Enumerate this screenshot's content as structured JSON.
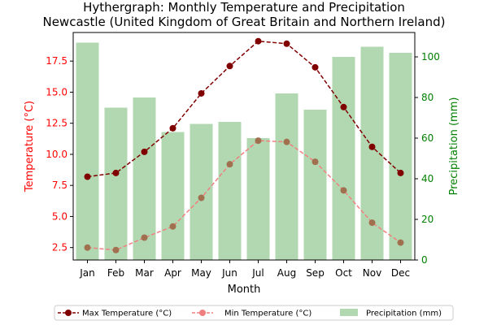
{
  "chart_data": {
    "type": "bar",
    "title": "Hythergraph: Monthly Temperature and Precipitation",
    "subtitle": "Newcastle (United Kingdom of Great Britain and Northern Ireland)",
    "xlabel": "Month",
    "ylabel": "Temperature (°C)",
    "y2label": "Precipitation (mm)",
    "categories": [
      "Jan",
      "Feb",
      "Mar",
      "Apr",
      "May",
      "Jun",
      "Jul",
      "Aug",
      "Sep",
      "Oct",
      "Nov",
      "Dec"
    ],
    "ylim": [
      1.5,
      19.8
    ],
    "y2lim": [
      0,
      112
    ],
    "yticks": [
      2.5,
      5.0,
      7.5,
      10.0,
      12.5,
      15.0,
      17.5
    ],
    "yticklabels": [
      "2.5",
      "5.0",
      "7.5",
      "10.0",
      "12.5",
      "15.0",
      "17.5"
    ],
    "y2ticks": [
      0,
      20,
      40,
      60,
      80,
      100
    ],
    "y2ticklabels": [
      "0",
      "20",
      "40",
      "60",
      "80",
      "100"
    ],
    "grid": false,
    "legend_position": "bottom",
    "series": [
      {
        "name": "Max Temperature (°C)",
        "type": "line",
        "axis": "left",
        "color": "#800000",
        "style": "dashed",
        "values": [
          8.2,
          8.5,
          10.2,
          12.1,
          14.9,
          17.1,
          19.1,
          18.9,
          17.0,
          13.8,
          10.6,
          8.5
        ]
      },
      {
        "name": "Min Temperature (°C)",
        "type": "line",
        "axis": "left",
        "color": "#f08080",
        "style": "dashed",
        "values": [
          2.5,
          2.3,
          3.3,
          4.2,
          6.5,
          9.2,
          11.1,
          11.0,
          9.4,
          7.1,
          4.5,
          2.9
        ]
      },
      {
        "name": "Precipitation (mm)",
        "type": "bar",
        "axis": "right",
        "color": "#b2d8b2",
        "values": [
          107,
          75,
          80,
          63,
          67,
          68,
          60,
          82,
          74,
          100,
          105,
          102
        ]
      }
    ],
    "colors": {
      "left_axis": "#ff0000",
      "right_axis": "#008000"
    }
  }
}
